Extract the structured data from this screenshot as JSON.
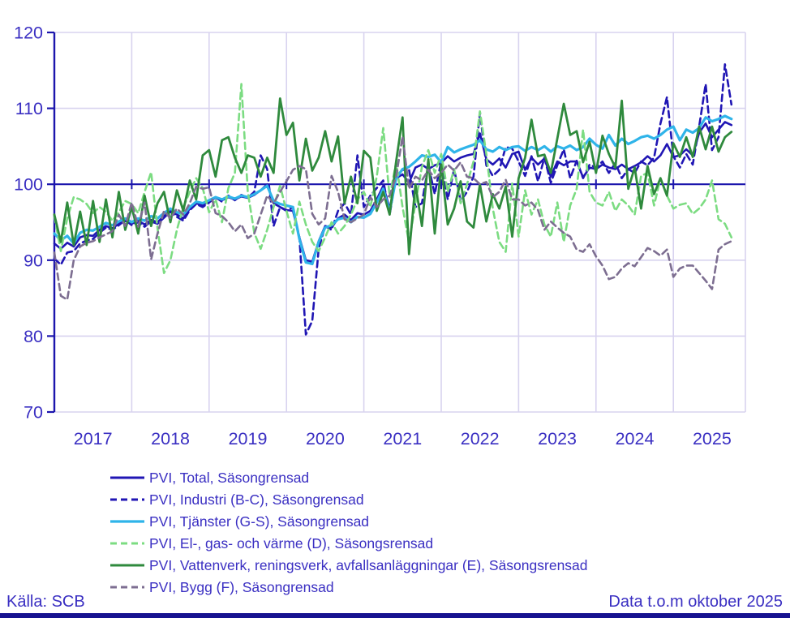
{
  "footer": {
    "source": "Källa: SCB",
    "note": "Data t.o.m oktober 2025"
  },
  "colors": {
    "axis_text": "#3a2fc2",
    "axis_line": "#1c16ad",
    "baseline_100": "#1c16ad",
    "gridline": "#d8d3ef",
    "bottom_bar": "#171390",
    "background": "#ffffff"
  },
  "chart_data": {
    "type": "line",
    "title": "",
    "xlabel": "",
    "ylabel": "",
    "ylim": [
      70,
      120
    ],
    "yticks": [
      70,
      80,
      90,
      100,
      110,
      120
    ],
    "xticks": [
      2017,
      2018,
      2019,
      2020,
      2021,
      2022,
      2023,
      2024,
      2025
    ],
    "x_start": "2017-01",
    "x_end": "2025-10",
    "x_frequency": "monthly",
    "baseline": 100,
    "grid": true,
    "legend_position": "bottom",
    "series": [
      {
        "name": "total",
        "label": "PVI, Total, Säsongrensad",
        "color": "#2016b4",
        "dash": "solid",
        "width": 2.6,
        "values": [
          92.2,
          91.5,
          92.3,
          91.8,
          93.0,
          93.3,
          93.2,
          94.0,
          94.5,
          94.2,
          94.8,
          95.2,
          94.8,
          95.2,
          94.7,
          95.3,
          95.0,
          95.8,
          96.5,
          96.0,
          95.5,
          96.8,
          97.5,
          97.2,
          97.8,
          98.2,
          97.9,
          98.3,
          98.0,
          98.4,
          98.2,
          98.6,
          99.2,
          100.0,
          97.5,
          97.0,
          96.6,
          96.5,
          93.0,
          90.0,
          89.8,
          92.5,
          94.5,
          94.3,
          95.5,
          96.0,
          95.3,
          96.2,
          96.0,
          96.5,
          98.0,
          99.8,
          96.8,
          100.8,
          101.3,
          100.2,
          102.2,
          102.6,
          102.0,
          102.5,
          102.8,
          103.7,
          103.0,
          103.5,
          103.8,
          104.0,
          106.7,
          103.3,
          102.6,
          103.4,
          102.2,
          104.0,
          104.3,
          101.9,
          103.5,
          102.6,
          103.4,
          101.0,
          103.0,
          102.5,
          103.0,
          103.0,
          100.9,
          102.2,
          102.0,
          102.6,
          102.2,
          102.0,
          102.6,
          102.0,
          102.4,
          102.9,
          103.7,
          103.0,
          103.8,
          105.3,
          103.6,
          103.8,
          104.6,
          103.8,
          106.8,
          108.0,
          106.2,
          107.2,
          108.2,
          107.8
        ]
      },
      {
        "name": "industri",
        "label": "PVI, Industri (B-C), Säsongrensad",
        "color": "#2016b4",
        "dash": "dashed",
        "width": 2.6,
        "values": [
          90.2,
          89.4,
          91.0,
          91.2,
          92.2,
          92.6,
          92.8,
          93.6,
          94.3,
          94.0,
          94.6,
          95.3,
          94.6,
          95.0,
          94.4,
          95.1,
          94.8,
          95.6,
          96.4,
          95.7,
          95.2,
          96.6,
          97.4,
          97.0,
          97.6,
          98.3,
          97.7,
          98.5,
          97.9,
          98.6,
          98.2,
          99.0,
          103.8,
          102.0,
          94.5,
          97.0,
          96.5,
          97.0,
          93.0,
          80.2,
          82.0,
          91.5,
          94.5,
          94.0,
          96.5,
          97.5,
          96.0,
          103.8,
          97.0,
          98.5,
          99.5,
          100.5,
          96.0,
          101.0,
          101.9,
          101.9,
          97.0,
          97.5,
          102.5,
          98.7,
          103.1,
          98.0,
          102.0,
          97.8,
          99.0,
          101.0,
          109.5,
          102.5,
          101.1,
          101.9,
          104.9,
          104.7,
          103.0,
          101.1,
          103.7,
          100.4,
          103.5,
          100.2,
          102.5,
          104.6,
          100.8,
          103.1,
          100.8,
          102.6,
          102.2,
          103.0,
          101.5,
          102.8,
          100.8,
          102.0,
          101.5,
          103.0,
          102.5,
          103.5,
          108.0,
          111.5,
          103.7,
          102.2,
          104.0,
          102.6,
          107.6,
          113.2,
          104.5,
          106.2,
          115.8,
          110.5
        ]
      },
      {
        "name": "tjanster",
        "label": "PVI, Tjänster (G-S), Säsongrensad",
        "color": "#2fb4e9",
        "dash": "solid",
        "width": 3.2,
        "values": [
          93.5,
          92.6,
          93.2,
          92.2,
          93.6,
          94.0,
          93.9,
          94.4,
          94.9,
          94.6,
          95.1,
          95.5,
          95.0,
          95.5,
          95.2,
          95.8,
          95.5,
          96.2,
          96.8,
          96.3,
          96.0,
          97.0,
          97.7,
          97.5,
          97.9,
          98.3,
          98.0,
          98.4,
          98.1,
          98.5,
          98.3,
          98.7,
          99.2,
          99.8,
          97.8,
          97.4,
          97.2,
          97.0,
          92.8,
          89.7,
          89.5,
          92.4,
          94.3,
          94.6,
          95.4,
          95.6,
          95.0,
          95.7,
          95.6,
          96.1,
          97.6,
          99.4,
          96.4,
          100.8,
          102.0,
          102.3,
          103.0,
          103.8,
          103.6,
          103.9,
          102.9,
          104.9,
          104.2,
          104.6,
          104.9,
          105.2,
          105.8,
          104.6,
          104.3,
          104.9,
          104.5,
          104.9,
          105.0,
          104.4,
          104.9,
          104.5,
          105.0,
          104.3,
          105.0,
          104.7,
          105.1,
          104.5,
          104.9,
          106.0,
          105.2,
          104.7,
          106.5,
          105.1,
          106.0,
          105.3,
          105.7,
          106.2,
          106.4,
          106.0,
          106.5,
          107.2,
          107.6,
          105.8,
          107.2,
          106.8,
          107.4,
          108.8,
          108.3,
          108.6,
          109.0,
          108.6
        ]
      },
      {
        "name": "el-gas-varme",
        "label": "PVI, El-, gas- och värme (D), Säsongsrensad",
        "color": "#7cdc82",
        "dash": "dashed",
        "width": 2.6,
        "values": [
          95.8,
          91.2,
          95.5,
          98.3,
          98.0,
          97.4,
          96.2,
          97.0,
          96.4,
          95.2,
          96.3,
          97.8,
          97.4,
          96.2,
          99.0,
          101.6,
          94.2,
          88.3,
          90.0,
          94.0,
          97.0,
          99.0,
          100.8,
          99.5,
          96.3,
          98.0,
          95.0,
          99.5,
          101.5,
          113.2,
          99.0,
          93.6,
          91.5,
          94.0,
          97.0,
          99.8,
          96.5,
          93.5,
          97.7,
          94.7,
          92.4,
          91.2,
          93.0,
          95.0,
          93.5,
          94.5,
          96.0,
          98.0,
          99.0,
          97.0,
          101.0,
          107.4,
          98.3,
          102.9,
          97.0,
          92.3,
          97.5,
          102.3,
          104.5,
          101.5,
          104.0,
          99.0,
          102.0,
          97.5,
          100.0,
          103.0,
          109.6,
          104.0,
          96.8,
          92.4,
          91.1,
          100.1,
          93.1,
          99.2,
          96.0,
          98.0,
          94.7,
          93.1,
          97.6,
          92.4,
          97.2,
          99.4,
          107.2,
          99.0,
          97.6,
          97.2,
          99.0,
          96.5,
          98.0,
          97.2,
          96.0,
          101.1,
          101.5,
          97.2,
          100.8,
          98.5,
          96.8,
          97.3,
          97.5,
          96.1,
          96.8,
          98.0,
          100.5,
          95.4,
          94.8,
          93.0
        ]
      },
      {
        "name": "vattenverk",
        "label": "PVI, Vattenverk, reningsverk, avfallsanläggningar (E), Säsongsrensad",
        "color": "#2f8a3d",
        "dash": "solid",
        "width": 2.8,
        "values": [
          96.0,
          92.4,
          97.6,
          92.0,
          96.4,
          92.0,
          97.8,
          92.4,
          98.0,
          93.0,
          99.0,
          94.0,
          97.0,
          93.5,
          98.5,
          94.5,
          97.5,
          99.0,
          95.0,
          99.2,
          96.5,
          100.5,
          98.0,
          103.8,
          104.5,
          101.0,
          105.8,
          106.2,
          103.5,
          101.5,
          103.8,
          103.5,
          101.0,
          103.5,
          101.5,
          111.3,
          106.5,
          108.1,
          100.5,
          106.0,
          101.8,
          103.5,
          107.0,
          103.0,
          106.3,
          97.5,
          101.0,
          97.5,
          104.4,
          103.5,
          96.5,
          99.0,
          96.0,
          103.0,
          108.8,
          90.8,
          100.0,
          94.5,
          103.3,
          93.5,
          102.6,
          94.7,
          96.8,
          100.4,
          95.1,
          94.3,
          100.0,
          95.1,
          98.7,
          96.8,
          99.7,
          93.1,
          100.8,
          103.5,
          108.5,
          103.7,
          103.9,
          101.5,
          106.0,
          110.6,
          106.5,
          107.0,
          102.9,
          105.6,
          101.5,
          106.4,
          104.0,
          102.2,
          111.0,
          99.4,
          102.2,
          96.8,
          102.4,
          98.7,
          100.8,
          98.5,
          105.4,
          103.6,
          106.2,
          103.6,
          107.6,
          104.6,
          107.6,
          104.3,
          106.2,
          106.9
        ]
      },
      {
        "name": "bygg",
        "label": "PVI, Bygg (F), Säsongrensad",
        "color": "#7d6e91",
        "dash": "dashed",
        "width": 2.6,
        "values": [
          91.0,
          85.3,
          84.8,
          90.0,
          91.8,
          92.3,
          92.5,
          93.0,
          93.4,
          93.8,
          96.0,
          94.5,
          97.6,
          94.4,
          97.6,
          90.1,
          93.5,
          96.5,
          95.5,
          96.8,
          96.0,
          97.5,
          99.7,
          99.4,
          99.6,
          96.2,
          95.8,
          95.0,
          93.8,
          94.7,
          92.9,
          93.5,
          96.0,
          98.5,
          97.5,
          99.0,
          100.4,
          101.9,
          102.4,
          102.0,
          96.1,
          94.7,
          95.5,
          101.1,
          99.0,
          95.4,
          95.0,
          95.5,
          96.0,
          98.3,
          97.0,
          98.0,
          98.5,
          101.0,
          106.3,
          99.4,
          101.0,
          100.5,
          101.9,
          100.8,
          101.5,
          102.6,
          101.8,
          102.9,
          101.0,
          100.8,
          100.0,
          100.3,
          98.3,
          99.0,
          100.6,
          98.0,
          98.0,
          97.2,
          97.6,
          96.6,
          94.0,
          95.1,
          94.3,
          93.6,
          93.1,
          91.4,
          91.1,
          92.1,
          90.5,
          89.3,
          87.5,
          87.8,
          88.9,
          89.6,
          89.2,
          90.4,
          91.6,
          91.2,
          90.6,
          91.4,
          87.8,
          88.9,
          89.3,
          89.3,
          88.3,
          87.3,
          86.2,
          91.4,
          92.1,
          92.5
        ]
      }
    ]
  }
}
